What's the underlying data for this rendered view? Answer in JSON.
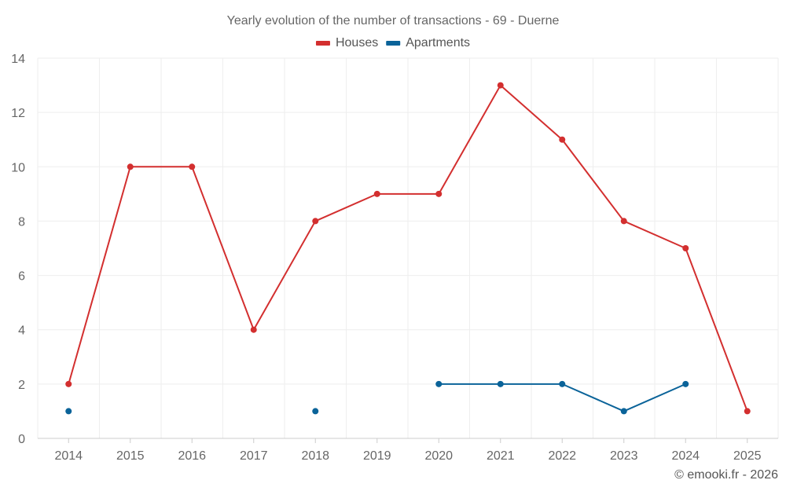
{
  "chart_data": {
    "type": "line",
    "title": "Yearly evolution of the number of transactions - 69 - Duerne",
    "categories": [
      "2014",
      "2015",
      "2016",
      "2017",
      "2018",
      "2019",
      "2020",
      "2021",
      "2022",
      "2023",
      "2024",
      "2025"
    ],
    "series": [
      {
        "name": "Houses",
        "color": "#d32f2f",
        "values": [
          2,
          10,
          10,
          4,
          8,
          9,
          9,
          13,
          11,
          8,
          7,
          1
        ]
      },
      {
        "name": "Apartments",
        "color": "#0a6399",
        "values": [
          1,
          null,
          null,
          null,
          1,
          null,
          2,
          2,
          2,
          1,
          2,
          null
        ]
      }
    ],
    "ylim": [
      0,
      14
    ],
    "yticks": [
      0,
      2,
      4,
      6,
      8,
      10,
      12,
      14
    ],
    "xlabel": "",
    "ylabel": "",
    "grid": true,
    "legend_position": "top-center"
  },
  "credit": "© emooki.fr - 2026"
}
